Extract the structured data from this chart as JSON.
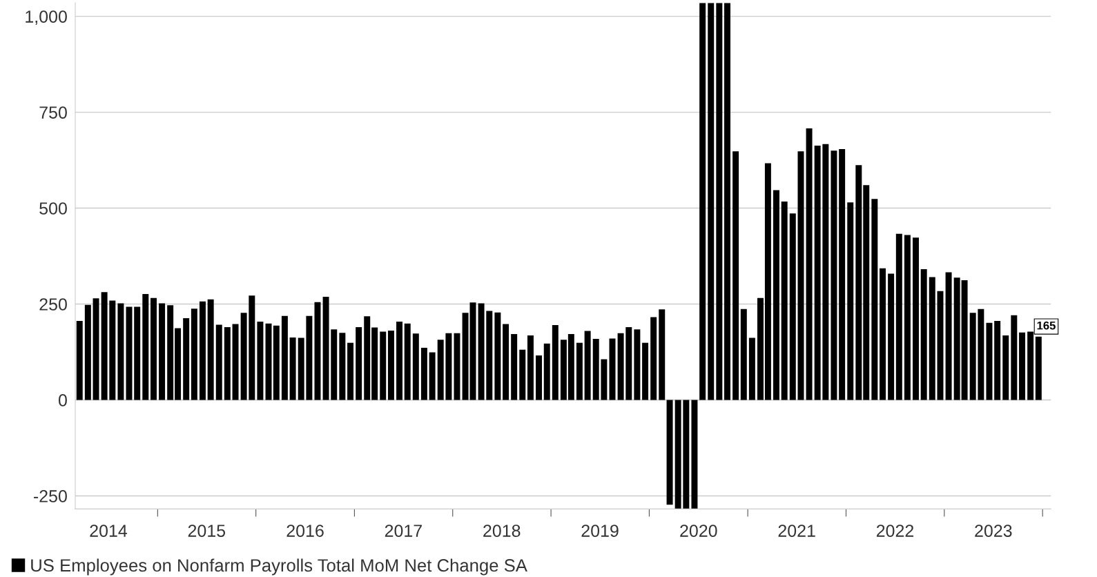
{
  "chart_data": {
    "type": "bar",
    "x": [
      "2014-03",
      "2014-04",
      "2014-05",
      "2014-06",
      "2014-07",
      "2014-08",
      "2014-09",
      "2014-10",
      "2014-11",
      "2014-12",
      "2015-01",
      "2015-02",
      "2015-03",
      "2015-04",
      "2015-05",
      "2015-06",
      "2015-07",
      "2015-08",
      "2015-09",
      "2015-10",
      "2015-11",
      "2015-12",
      "2016-01",
      "2016-02",
      "2016-03",
      "2016-04",
      "2016-05",
      "2016-06",
      "2016-07",
      "2016-08",
      "2016-09",
      "2016-10",
      "2016-11",
      "2016-12",
      "2017-01",
      "2017-02",
      "2017-03",
      "2017-04",
      "2017-05",
      "2017-06",
      "2017-07",
      "2017-08",
      "2017-09",
      "2017-10",
      "2017-11",
      "2017-12",
      "2018-01",
      "2018-02",
      "2018-03",
      "2018-04",
      "2018-05",
      "2018-06",
      "2018-07",
      "2018-08",
      "2018-09",
      "2018-10",
      "2018-11",
      "2018-12",
      "2019-01",
      "2019-02",
      "2019-03",
      "2019-04",
      "2019-05",
      "2019-06",
      "2019-07",
      "2019-08",
      "2019-09",
      "2019-10",
      "2019-11",
      "2019-12",
      "2020-01",
      "2020-02",
      "2020-03",
      "2020-04",
      "2020-05",
      "2020-06",
      "2020-07",
      "2020-08",
      "2020-09",
      "2020-10",
      "2020-11",
      "2020-12",
      "2021-01",
      "2021-02",
      "2021-03",
      "2021-04",
      "2021-05",
      "2021-06",
      "2021-07",
      "2021-08",
      "2021-09",
      "2021-10",
      "2021-11",
      "2021-12",
      "2022-01",
      "2022-02",
      "2022-03",
      "2022-04",
      "2022-05",
      "2022-06",
      "2022-07",
      "2022-08",
      "2022-09",
      "2022-10",
      "2022-11",
      "2022-12",
      "2023-01",
      "2023-02",
      "2023-03",
      "2023-04",
      "2023-05",
      "2023-06",
      "2023-07",
      "2023-08",
      "2023-09",
      "2023-10",
      "2023-11",
      "2023-12"
    ],
    "series": [
      {
        "name": "US Employees on Nonfarm Payrolls Total MoM Net Change SA",
        "color": "#000000",
        "values": [
          206,
          248,
          265,
          281,
          259,
          252,
          243,
          243,
          276,
          266,
          252,
          247,
          187,
          213,
          238,
          257,
          262,
          196,
          190,
          198,
          227,
          272,
          204,
          199,
          194,
          219,
          163,
          162,
          219,
          255,
          269,
          184,
          175,
          149,
          190,
          218,
          189,
          178,
          181,
          204,
          199,
          173,
          136,
          124,
          157,
          174,
          174,
          227,
          254,
          252,
          232,
          228,
          198,
          172,
          131,
          168,
          116,
          147,
          195,
          157,
          172,
          149,
          180,
          159,
          106,
          160,
          174,
          190,
          184,
          149,
          216,
          236,
          -273,
          -284,
          -284,
          -284,
          1035,
          1035,
          1035,
          1035,
          648,
          237,
          162,
          266,
          617,
          547,
          517,
          486,
          648,
          708,
          663,
          667,
          650,
          654,
          515,
          612,
          560,
          524,
          343,
          329,
          433,
          430,
          423,
          341,
          320,
          284,
          333,
          319,
          312,
          227,
          237,
          201,
          206,
          168,
          221,
          176,
          178,
          165
        ],
        "value_labels": [
          null,
          null,
          null,
          null,
          null,
          null,
          null,
          null,
          null,
          null,
          null,
          null,
          null,
          null,
          null,
          null,
          null,
          null,
          null,
          null,
          null,
          null,
          null,
          null,
          null,
          null,
          null,
          null,
          null,
          null,
          null,
          null,
          null,
          null,
          null,
          null,
          null,
          null,
          null,
          null,
          null,
          null,
          null,
          null,
          null,
          null,
          null,
          null,
          null,
          null,
          null,
          null,
          null,
          null,
          null,
          null,
          null,
          null,
          null,
          null,
          null,
          null,
          null,
          null,
          null,
          null,
          null,
          null,
          null,
          null,
          null,
          null,
          null,
          null,
          null,
          null,
          null,
          null,
          null,
          null,
          null,
          null,
          null,
          null,
          null,
          null,
          null,
          null,
          null,
          null,
          null,
          null,
          null,
          null,
          null,
          null,
          null,
          null,
          null,
          null,
          null,
          null,
          null,
          null,
          null,
          null,
          null,
          null,
          null,
          null,
          null,
          null,
          null,
          null,
          null,
          null,
          null,
          "165"
        ]
      }
    ],
    "xlim": [
      "2014-02-13",
      "2024-01-16"
    ],
    "xticks": [
      {
        "value": "2014-06-16",
        "label": "2014"
      },
      {
        "value": "2014-12-16",
        "label": null
      },
      {
        "value": "2015-06-16",
        "label": "2015"
      },
      {
        "value": "2015-12-16",
        "label": null
      },
      {
        "value": "2016-06-16",
        "label": "2016"
      },
      {
        "value": "2016-12-16",
        "label": null
      },
      {
        "value": "2017-06-16",
        "label": "2017"
      },
      {
        "value": "2017-12-16",
        "label": null
      },
      {
        "value": "2018-06-16",
        "label": "2018"
      },
      {
        "value": "2018-12-16",
        "label": null
      },
      {
        "value": "2019-06-16",
        "label": "2019"
      },
      {
        "value": "2019-12-16",
        "label": null
      },
      {
        "value": "2020-06-16",
        "label": "2020"
      },
      {
        "value": "2020-12-16",
        "label": null
      },
      {
        "value": "2021-06-16",
        "label": "2021"
      },
      {
        "value": "2021-12-16",
        "label": null
      },
      {
        "value": "2022-06-16",
        "label": "2022"
      },
      {
        "value": "2022-12-16",
        "label": null
      },
      {
        "value": "2023-06-16",
        "label": "2023"
      },
      {
        "value": "2023-12-16",
        "label": null
      }
    ],
    "ylim": [
      -284,
      1035
    ],
    "yticks": [
      -250,
      0,
      250,
      500,
      750,
      {
        "value": 1000,
        "label": "1,000"
      }
    ],
    "grid": "y",
    "legend": "bottom left"
  }
}
